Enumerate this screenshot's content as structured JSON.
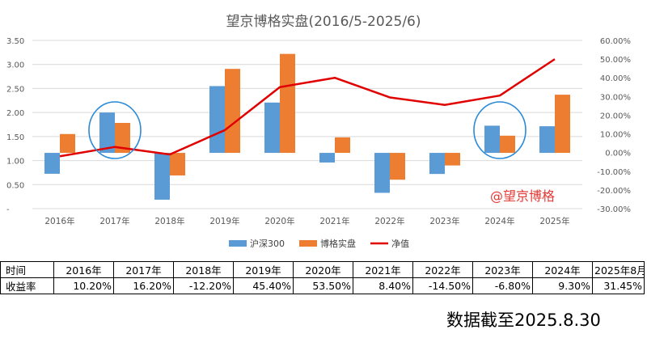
{
  "chart_data": {
    "type": "bar+line",
    "title": "望京博格实盘(2016/5-2025/6)",
    "categories": [
      "2016年",
      "2017年",
      "2018年",
      "2019年",
      "2020年",
      "2021年",
      "2022年",
      "2023年",
      "2024年",
      "2025年"
    ],
    "series": [
      {
        "name": "沪深300",
        "type": "bar",
        "axis": "left",
        "color": "#5b9bd5",
        "values": [
          -11.3,
          21.8,
          -25.3,
          36.1,
          27.2,
          -5.2,
          -21.6,
          -11.4,
          14.7,
          14.4
        ]
      },
      {
        "name": "博格实盘",
        "type": "bar",
        "axis": "left",
        "color": "#ed7d31",
        "values": [
          10.2,
          16.2,
          -12.2,
          45.4,
          53.5,
          8.4,
          -14.5,
          -6.8,
          9.3,
          31.45
        ]
      },
      {
        "name": "净值",
        "type": "line",
        "axis": "right",
        "color": "#e00000",
        "values": [
          -2,
          3,
          -1,
          12,
          35,
          40,
          29.5,
          25.5,
          30.5,
          50
        ]
      }
    ],
    "left_axis": {
      "ylim": [
        0,
        3.5
      ],
      "ticks": [
        "-",
        "0.50",
        "1.00",
        "1.50",
        "2.00",
        "2.50",
        "3.00",
        "3.50"
      ]
    },
    "right_axis": {
      "ylim": [
        -30,
        60
      ],
      "ticks": [
        "-30.00%",
        "-20.00%",
        "-10.00%",
        "0.00%",
        "10.00%",
        "20.00%",
        "30.00%",
        "40.00%",
        "50.00%",
        "60.00%"
      ]
    },
    "bar_baseline_left": 1.16,
    "bar_scale_per_percent": 0.0385,
    "gridlines": true,
    "legend_position": "bottom",
    "highlighted_years": [
      "2017年",
      "2024年"
    ],
    "highlight_color": "#2a8ad8"
  },
  "watermark": "@望京博格",
  "returns_table": {
    "header_label": "时间",
    "row_label": "收益率",
    "years": [
      "2016年",
      "2017年",
      "2018年",
      "2019年",
      "2020年",
      "2021年",
      "2022年",
      "2023年",
      "2024年",
      "2025年8月"
    ],
    "returns": [
      "10.20%",
      "16.20%",
      "-12.20%",
      "45.40%",
      "53.50%",
      "8.40%",
      "-14.50%",
      "-6.80%",
      "9.30%",
      "31.45%"
    ]
  },
  "footer_caption": "数据截至2025.8.30"
}
